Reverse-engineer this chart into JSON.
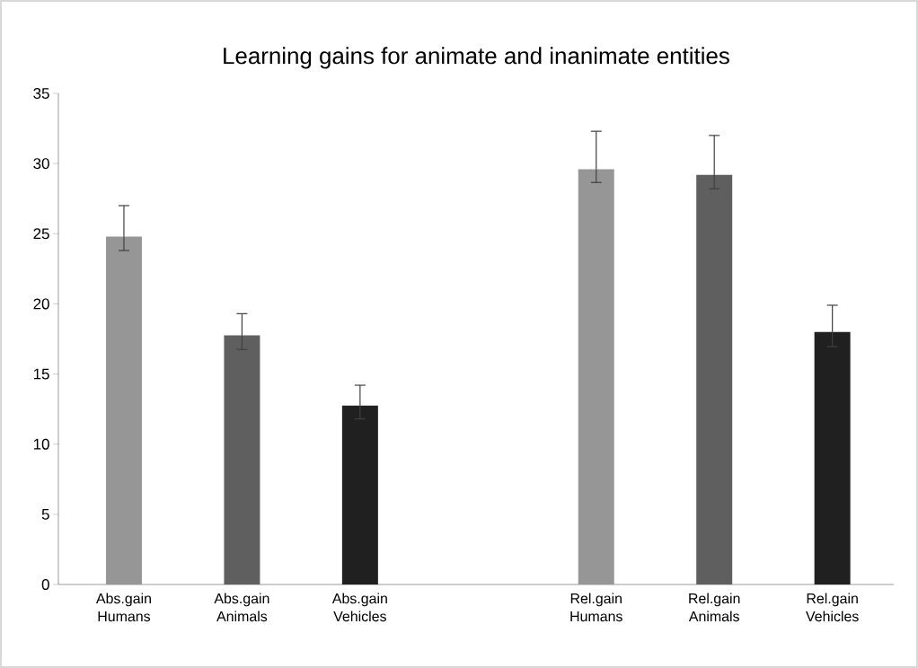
{
  "chart_data": {
    "type": "bar",
    "title": "Learning gains for animate and inanimate entities",
    "categories": [
      "Abs.gain Humans",
      "Abs.gain Animals",
      "Abs.gain Vehicles",
      null,
      "Rel.gain Humans",
      "Rel.gain Animals",
      "Rel.gain Vehicles"
    ],
    "values": [
      24.8,
      17.75,
      12.75,
      null,
      29.6,
      29.2,
      18.0
    ],
    "errors": [
      [
        23.8,
        27.0
      ],
      [
        16.75,
        19.3
      ],
      [
        11.8,
        14.2
      ],
      null,
      [
        28.65,
        32.3
      ],
      [
        28.2,
        32.0
      ],
      [
        16.95,
        19.9
      ]
    ],
    "colors": [
      "#969696",
      "#5f5f5f",
      "#202020",
      null,
      "#969696",
      "#5f5f5f",
      "#202020"
    ],
    "ylim": [
      0,
      35
    ],
    "yticks": [
      0,
      5,
      10,
      15,
      20,
      25,
      30,
      35
    ],
    "grid": false
  }
}
